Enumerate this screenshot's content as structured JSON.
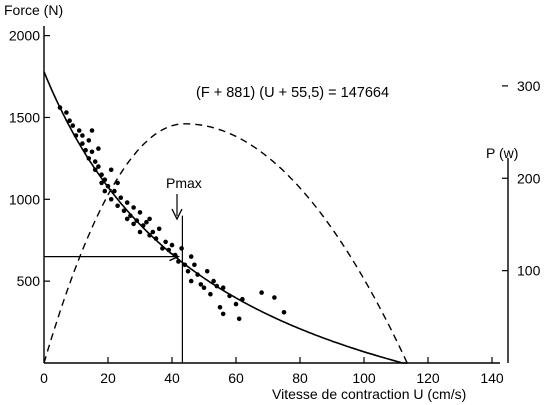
{
  "chart_data": {
    "type": "scatter",
    "equation": "(F + 881)  (U + 55,5) = 147664",
    "annotation": "Pmax",
    "xlabel": "Vitesse de contraction U (cm/s)",
    "ylabel": "Force (N)",
    "y2label": "P (w)",
    "xlim": [
      0,
      150
    ],
    "ylim": [
      0,
      2000
    ],
    "y2lim": [
      0,
      355
    ],
    "x_ticks": [
      "0",
      "20",
      "40",
      "60",
      "80",
      "100",
      "120",
      "140"
    ],
    "x_tick_values": [
      0,
      20,
      40,
      60,
      80,
      100,
      120,
      140
    ],
    "y_ticks": [
      "2000",
      "1500",
      "1000",
      "500"
    ],
    "y_tick_values": [
      2000,
      1500,
      1000,
      500
    ],
    "y2_ticks": [
      "300",
      "200",
      "100"
    ],
    "y2_tick_values": [
      300,
      200,
      100
    ],
    "pmax": {
      "U": 42,
      "F": 650
    },
    "power_peak": {
      "U": 44,
      "P": 259
    },
    "power_range": [
      0,
      113.5
    ],
    "force_curve": {
      "a": 881,
      "b": 55.5,
      "k": 147664,
      "u_range": [
        0,
        113.5
      ]
    },
    "points": [
      [
        5,
        1560
      ],
      [
        7,
        1530
      ],
      [
        8,
        1480
      ],
      [
        9,
        1450
      ],
      [
        10,
        1390
      ],
      [
        11,
        1420
      ],
      [
        12,
        1390
      ],
      [
        12,
        1340
      ],
      [
        13,
        1300
      ],
      [
        14,
        1360
      ],
      [
        14,
        1250
      ],
      [
        15,
        1290
      ],
      [
        15,
        1420
      ],
      [
        16,
        1230
      ],
      [
        16,
        1180
      ],
      [
        17,
        1310
      ],
      [
        17,
        1200
      ],
      [
        18,
        1150
      ],
      [
        18,
        1100
      ],
      [
        19,
        1120
      ],
      [
        19,
        1050
      ],
      [
        20,
        1080
      ],
      [
        21,
        1180
      ],
      [
        21,
        1000
      ],
      [
        22,
        1050
      ],
      [
        23,
        960
      ],
      [
        23,
        1100
      ],
      [
        24,
        1010
      ],
      [
        25,
        930
      ],
      [
        26,
        980
      ],
      [
        26,
        880
      ],
      [
        27,
        900
      ],
      [
        28,
        950
      ],
      [
        28,
        850
      ],
      [
        29,
        870
      ],
      [
        30,
        800
      ],
      [
        30,
        920
      ],
      [
        31,
        840
      ],
      [
        32,
        860
      ],
      [
        33,
        780
      ],
      [
        33,
        880
      ],
      [
        34,
        800
      ],
      [
        35,
        760
      ],
      [
        36,
        820
      ],
      [
        37,
        700
      ],
      [
        38,
        740
      ],
      [
        39,
        690
      ],
      [
        40,
        720
      ],
      [
        41,
        660
      ],
      [
        42,
        620
      ],
      [
        43,
        700
      ],
      [
        44,
        600
      ],
      [
        45,
        560
      ],
      [
        46,
        650
      ],
      [
        46,
        500
      ],
      [
        47,
        600
      ],
      [
        48,
        540
      ],
      [
        49,
        480
      ],
      [
        50,
        460
      ],
      [
        51,
        560
      ],
      [
        52,
        420
      ],
      [
        53,
        500
      ],
      [
        54,
        470
      ],
      [
        55,
        340
      ],
      [
        56,
        460
      ],
      [
        56,
        300
      ],
      [
        58,
        410
      ],
      [
        60,
        360
      ],
      [
        61,
        270
      ],
      [
        62,
        390
      ],
      [
        68,
        430
      ],
      [
        72,
        400
      ],
      [
        75,
        310
      ]
    ]
  }
}
